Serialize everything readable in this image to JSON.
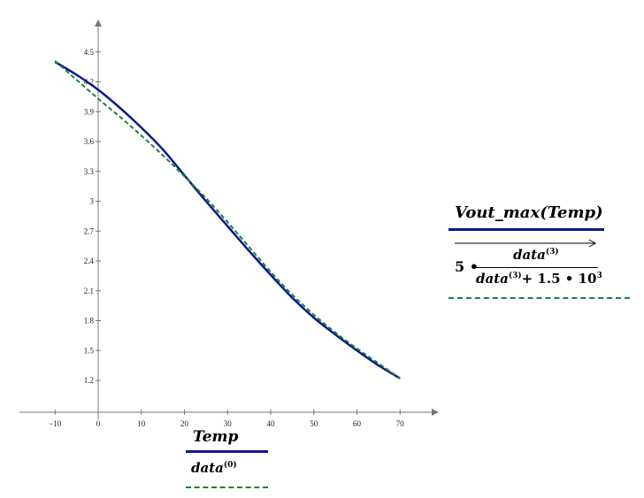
{
  "chart_data": {
    "type": "line",
    "x_ticks": [
      "−10",
      "0",
      "10",
      "20",
      "30",
      "40",
      "50",
      "60",
      "70"
    ],
    "y_ticks": [
      "1.2",
      "1.5",
      "1.8",
      "2.1",
      "2.4",
      "2.7",
      "3",
      "3.3",
      "3.6",
      "3.9",
      "4.2",
      "4.5"
    ],
    "series": [
      {
        "name": "V_out_max(Temp)",
        "color": "#0b1a8c",
        "style": "solid",
        "x": [
          -10,
          -5,
          0,
          5,
          10,
          15,
          20,
          25,
          30,
          35,
          40,
          45,
          50,
          55,
          60,
          65,
          70
        ],
        "y": [
          4.4,
          4.27,
          4.12,
          3.94,
          3.74,
          3.52,
          3.26,
          3.0,
          2.75,
          2.5,
          2.26,
          2.03,
          1.83,
          1.66,
          1.5,
          1.35,
          1.22
        ]
      },
      {
        "name": "5·data⁽³⁾/(data⁽³⁾+1.5·10³)",
        "color": "#1e7f3a",
        "style": "dashed",
        "x": [
          -10,
          -5,
          0,
          5,
          10,
          15,
          20,
          25,
          30,
          35,
          40,
          45,
          50,
          55,
          60,
          65,
          70
        ],
        "y": [
          4.41,
          4.22,
          4.03,
          3.85,
          3.66,
          3.46,
          3.25,
          3.03,
          2.79,
          2.54,
          2.29,
          2.06,
          1.86,
          1.68,
          1.52,
          1.37,
          1.22
        ]
      }
    ]
  },
  "legend_bottom": {
    "x_label": "Temp",
    "data_label_base": "data",
    "data_label_sup": "(0)"
  },
  "legend_right": {
    "func_name": "V",
    "func_sub": "out_max",
    "func_arg": "(Temp)",
    "expr_coef": "5",
    "expr_num": "data",
    "expr_num_sup": "(3)",
    "expr_den_base": "data",
    "expr_den_sup": "(3)",
    "expr_den_rest": "+ 1.5 • 10",
    "expr_den_exp": "3"
  }
}
